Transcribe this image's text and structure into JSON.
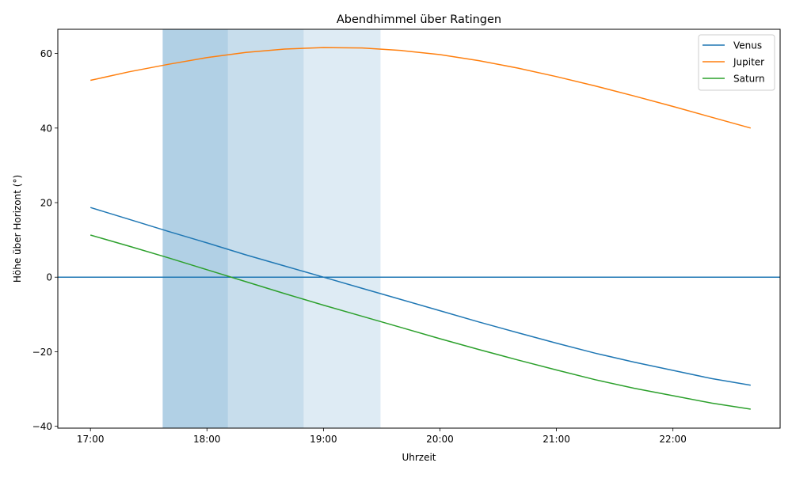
{
  "chart_data": {
    "type": "line",
    "title": "Abendhimmel über Ratingen",
    "xlabel": "Uhrzeit",
    "ylabel": "Höhe über Horizont (°)",
    "xlim": [
      16.72,
      22.92
    ],
    "ylim": [
      -40.5,
      66.5
    ],
    "x_ticks": [
      {
        "value": 17,
        "label": "17:00"
      },
      {
        "value": 18,
        "label": "18:00"
      },
      {
        "value": 19,
        "label": "19:00"
      },
      {
        "value": 20,
        "label": "20:00"
      },
      {
        "value": 21,
        "label": "21:00"
      },
      {
        "value": 22,
        "label": "22:00"
      }
    ],
    "y_ticks": [
      {
        "value": 60,
        "label": "60"
      },
      {
        "value": 40,
        "label": "40"
      },
      {
        "value": 20,
        "label": "20"
      },
      {
        "value": 0,
        "label": "0"
      },
      {
        "value": -20,
        "label": "−20"
      },
      {
        "value": -40,
        "label": "−40"
      }
    ],
    "grid": false,
    "legend_position": "upper right",
    "horizon_line": {
      "y": 0,
      "color": "#1f77b4"
    },
    "twilight_bands": [
      {
        "x0": 17.62,
        "x1": 18.18,
        "color": "#1f77b4",
        "opacity": 0.35
      },
      {
        "x0": 18.18,
        "x1": 18.83,
        "color": "#1f77b4",
        "opacity": 0.25
      },
      {
        "x0": 18.83,
        "x1": 19.49,
        "color": "#1f77b4",
        "opacity": 0.15
      }
    ],
    "x": [
      17.0,
      17.333,
      17.667,
      18.0,
      18.333,
      18.667,
      19.0,
      19.333,
      19.667,
      20.0,
      20.333,
      20.667,
      21.0,
      21.333,
      21.667,
      22.0,
      22.333,
      22.667
    ],
    "series": [
      {
        "name": "Venus",
        "color": "#1f77b4",
        "values": [
          18.7,
          15.5,
          12.3,
          9.2,
          6.0,
          3.0,
          0.0,
          -3.0,
          -6.0,
          -9.0,
          -12.0,
          -14.9,
          -17.7,
          -20.4,
          -22.8,
          -25.0,
          -27.2,
          -29.0
        ]
      },
      {
        "name": "Jupiter",
        "color": "#ff7f0e",
        "values": [
          52.8,
          55.1,
          57.1,
          58.9,
          60.3,
          61.2,
          61.6,
          61.5,
          60.8,
          59.7,
          58.1,
          56.1,
          53.8,
          51.3,
          48.6,
          45.8,
          42.9,
          40.0
        ]
      },
      {
        "name": "Saturn",
        "color": "#2ca02c",
        "values": [
          11.3,
          8.3,
          5.2,
          2.0,
          -1.2,
          -4.4,
          -7.5,
          -10.5,
          -13.5,
          -16.5,
          -19.4,
          -22.2,
          -24.9,
          -27.5,
          -29.8,
          -31.8,
          -33.8,
          -35.4
        ]
      }
    ]
  }
}
